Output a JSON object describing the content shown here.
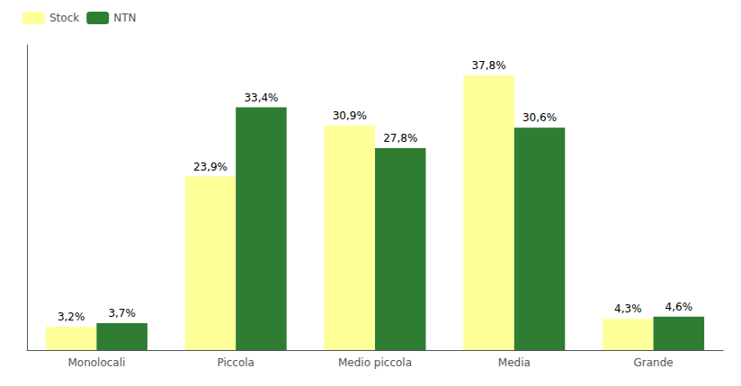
{
  "chart_data": {
    "type": "bar",
    "categories": [
      "Monolocali",
      "Piccola",
      "Medio piccola",
      "Media",
      "Grande"
    ],
    "series": [
      {
        "name": "Stock",
        "color": "#FFFF99",
        "values": [
          3.2,
          23.9,
          30.9,
          37.8,
          4.3
        ],
        "value_labels": [
          "3,2%",
          "23,9%",
          "30,9%",
          "37,8%",
          "4,3%"
        ]
      },
      {
        "name": "NTN",
        "color": "#2E7D32",
        "values": [
          3.7,
          33.4,
          27.8,
          30.6,
          4.6
        ],
        "value_labels": [
          "3,7%",
          "33,4%",
          "27,8%",
          "30,6%",
          "4,6%"
        ]
      }
    ],
    "ylim": [
      0,
      42
    ],
    "grid": false,
    "legend": "upper left",
    "data_labels": true,
    "tick_labels": "x"
  }
}
